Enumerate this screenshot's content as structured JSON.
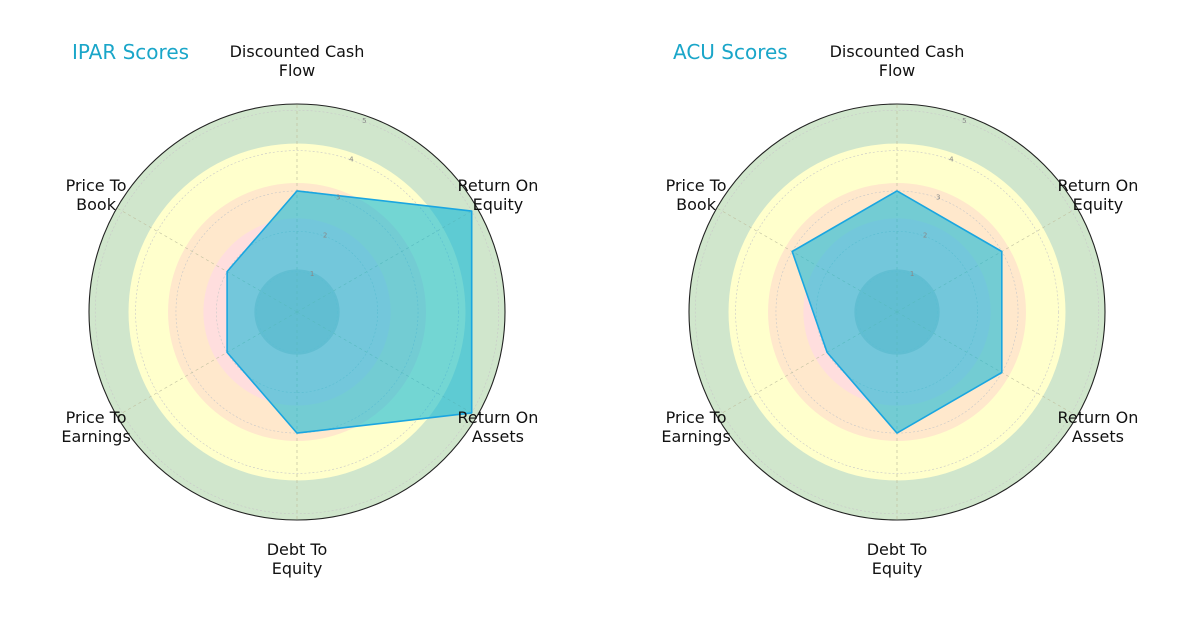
{
  "chart_data": [
    {
      "type": "radar",
      "title": "IPAR Scores",
      "axes": [
        "Discounted Cash Flow",
        "Return On Equity",
        "Return On Assets",
        "Debt To Equity",
        "Price To Earnings",
        "Price To Book"
      ],
      "axis_label_lines": [
        [
          "Discounted Cash",
          "Flow"
        ],
        [
          "Return On",
          "Equity"
        ],
        [
          "Return On",
          "Assets"
        ],
        [
          "Debt To",
          "Equity"
        ],
        [
          "Price To",
          "Earnings"
        ],
        [
          "Price To",
          "Book"
        ]
      ],
      "values": [
        3,
        5,
        5,
        3,
        2,
        2
      ],
      "rmax": 5,
      "ticks": [
        "1",
        "2",
        "3",
        "4",
        "5"
      ],
      "grid": true
    },
    {
      "type": "radar",
      "title": "ACU Scores",
      "axes": [
        "Discounted Cash Flow",
        "Return On Equity",
        "Return On Assets",
        "Debt To Equity",
        "Price To Earnings",
        "Price To Book"
      ],
      "axis_label_lines": [
        [
          "Discounted Cash",
          "Flow"
        ],
        [
          "Return On",
          "Equity"
        ],
        [
          "Return On",
          "Assets"
        ],
        [
          "Debt To",
          "Equity"
        ],
        [
          "Price To",
          "Earnings"
        ],
        [
          "Price To",
          "Book"
        ]
      ],
      "values": [
        3,
        3,
        3,
        3,
        2,
        3
      ],
      "rmax": 5,
      "ticks": [
        "1",
        "2",
        "3",
        "4",
        "5"
      ],
      "grid": true
    }
  ],
  "colors": {
    "series_fill": "#00b4d8",
    "series_stroke": "#1aa6e0",
    "title": "#1aa6c9",
    "band_outer": "#d0e6cc",
    "band_good": "#ffffcc",
    "band_mid": "#ffe8cc",
    "band_low": "#ffdede",
    "band_core": "#a8b0b4"
  }
}
